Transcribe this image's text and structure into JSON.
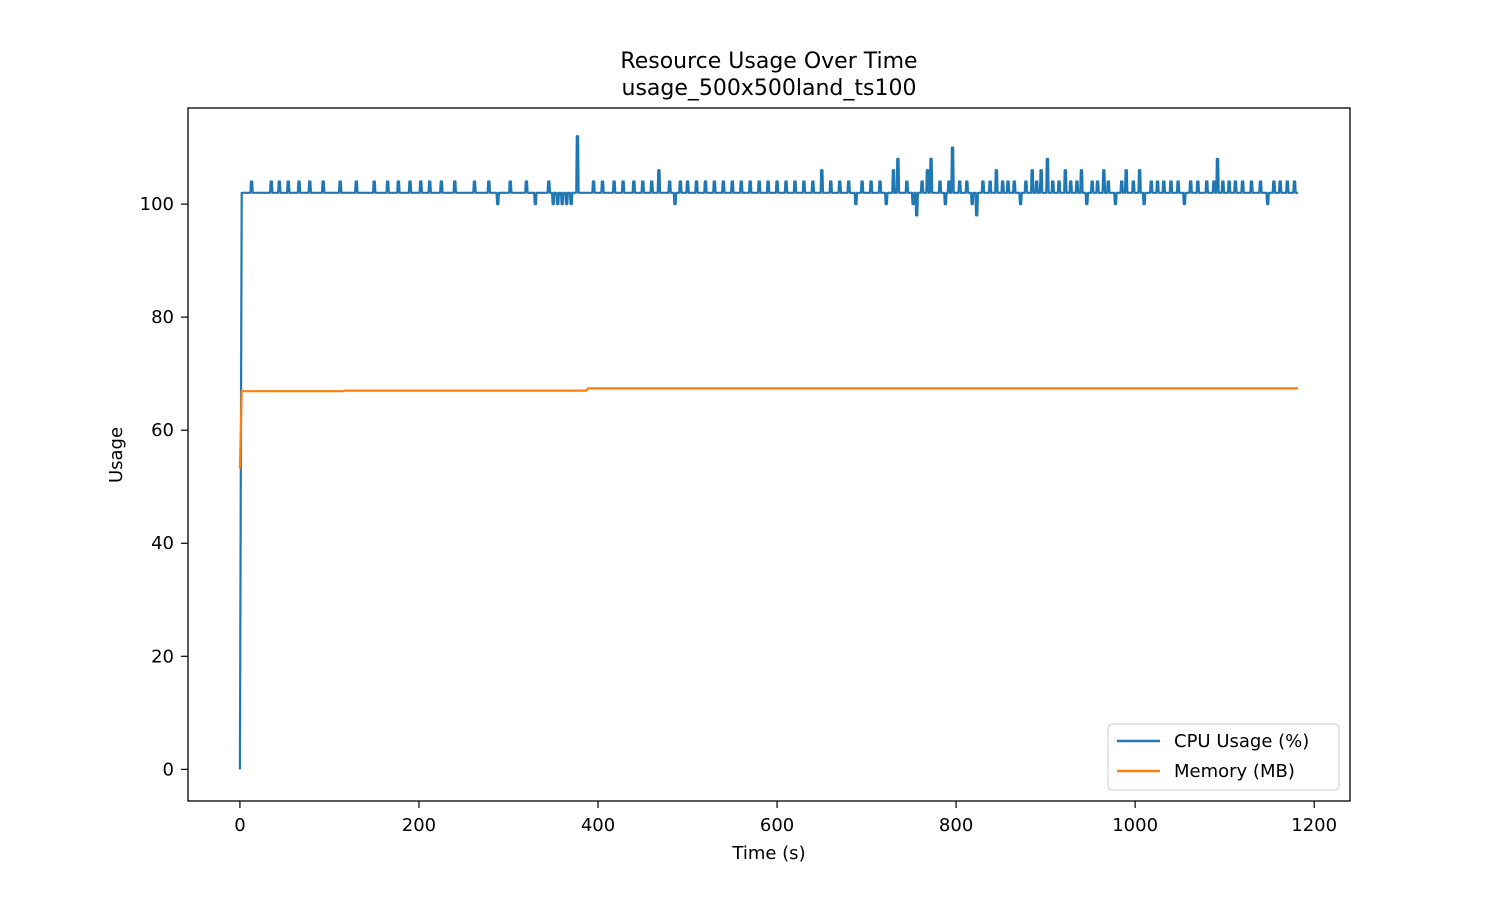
{
  "chart_data": {
    "type": "line",
    "title": "Resource Usage Over Time",
    "subtitle": "usage_500x500land_ts100",
    "xlabel": "Time (s)",
    "ylabel": "Usage",
    "xlim": [
      -58,
      1240
    ],
    "ylim": [
      -5.6,
      117
    ],
    "xticks": [
      0,
      200,
      400,
      600,
      800,
      1000,
      1200
    ],
    "yticks": [
      0,
      20,
      40,
      60,
      80,
      100
    ],
    "grid": false,
    "legend_position": "lower-right",
    "series": [
      {
        "name": "CPU Usage (%)",
        "color": "#1f77b4",
        "baseline": 102,
        "points": [
          [
            0,
            0
          ],
          [
            1,
            53
          ],
          [
            2,
            102
          ]
        ],
        "excursions": [
          [
            13,
            104
          ],
          [
            35,
            104
          ],
          [
            44,
            104
          ],
          [
            54,
            104
          ],
          [
            66,
            104
          ],
          [
            78,
            104
          ],
          [
            93,
            104
          ],
          [
            112,
            104
          ],
          [
            130,
            104
          ],
          [
            150,
            104
          ],
          [
            165,
            104
          ],
          [
            177,
            104
          ],
          [
            190,
            104
          ],
          [
            202,
            104
          ],
          [
            212,
            104
          ],
          [
            225,
            104
          ],
          [
            240,
            104
          ],
          [
            262,
            104
          ],
          [
            278,
            104
          ],
          [
            288,
            100
          ],
          [
            302,
            104
          ],
          [
            320,
            104
          ],
          [
            330,
            100
          ],
          [
            345,
            104
          ],
          [
            350,
            100
          ],
          [
            355,
            100
          ],
          [
            360,
            100
          ],
          [
            365,
            100
          ],
          [
            370,
            100
          ],
          [
            377,
            112
          ],
          [
            395,
            104
          ],
          [
            405,
            104
          ],
          [
            418,
            104
          ],
          [
            428,
            104
          ],
          [
            440,
            104
          ],
          [
            450,
            104
          ],
          [
            460,
            104
          ],
          [
            468,
            106
          ],
          [
            480,
            104
          ],
          [
            486,
            100
          ],
          [
            492,
            104
          ],
          [
            500,
            104
          ],
          [
            510,
            104
          ],
          [
            520,
            104
          ],
          [
            530,
            104
          ],
          [
            540,
            104
          ],
          [
            550,
            104
          ],
          [
            560,
            104
          ],
          [
            570,
            104
          ],
          [
            580,
            104
          ],
          [
            590,
            104
          ],
          [
            600,
            104
          ],
          [
            610,
            104
          ],
          [
            620,
            104
          ],
          [
            630,
            104
          ],
          [
            640,
            104
          ],
          [
            650,
            106
          ],
          [
            660,
            104
          ],
          [
            670,
            104
          ],
          [
            680,
            104
          ],
          [
            688,
            100
          ],
          [
            695,
            104
          ],
          [
            705,
            104
          ],
          [
            715,
            104
          ],
          [
            722,
            100
          ],
          [
            730,
            106
          ],
          [
            735,
            108
          ],
          [
            745,
            104
          ],
          [
            752,
            100
          ],
          [
            756,
            98
          ],
          [
            762,
            104
          ],
          [
            768,
            106
          ],
          [
            772,
            108
          ],
          [
            782,
            104
          ],
          [
            788,
            100
          ],
          [
            792,
            104
          ],
          [
            796,
            110
          ],
          [
            804,
            104
          ],
          [
            812,
            104
          ],
          [
            818,
            100
          ],
          [
            823,
            98
          ],
          [
            830,
            104
          ],
          [
            838,
            104
          ],
          [
            845,
            106
          ],
          [
            852,
            104
          ],
          [
            858,
            104
          ],
          [
            865,
            104
          ],
          [
            872,
            100
          ],
          [
            878,
            104
          ],
          [
            885,
            106
          ],
          [
            890,
            104
          ],
          [
            895,
            106
          ],
          [
            902,
            108
          ],
          [
            908,
            104
          ],
          [
            915,
            104
          ],
          [
            922,
            106
          ],
          [
            928,
            104
          ],
          [
            935,
            104
          ],
          [
            940,
            106
          ],
          [
            946,
            100
          ],
          [
            952,
            104
          ],
          [
            958,
            104
          ],
          [
            965,
            106
          ],
          [
            970,
            104
          ],
          [
            978,
            100
          ],
          [
            985,
            104
          ],
          [
            990,
            106
          ],
          [
            998,
            104
          ],
          [
            1005,
            106
          ],
          [
            1010,
            100
          ],
          [
            1018,
            104
          ],
          [
            1025,
            104
          ],
          [
            1032,
            104
          ],
          [
            1040,
            104
          ],
          [
            1048,
            104
          ],
          [
            1055,
            100
          ],
          [
            1062,
            104
          ],
          [
            1070,
            104
          ],
          [
            1080,
            104
          ],
          [
            1088,
            104
          ],
          [
            1092,
            108
          ],
          [
            1098,
            104
          ],
          [
            1105,
            104
          ],
          [
            1112,
            104
          ],
          [
            1120,
            104
          ],
          [
            1130,
            104
          ],
          [
            1140,
            104
          ],
          [
            1148,
            100
          ],
          [
            1155,
            104
          ],
          [
            1162,
            104
          ],
          [
            1170,
            104
          ],
          [
            1178,
            104
          ]
        ],
        "x_end": 1182
      },
      {
        "name": "Memory (MB)",
        "color": "#ff7f0e",
        "points": [
          [
            0,
            53.2
          ],
          [
            1,
            60.0
          ],
          [
            2,
            66.9
          ],
          [
            115,
            66.9
          ],
          [
            117,
            67.0
          ],
          [
            387,
            67.0
          ],
          [
            389,
            67.4
          ],
          [
            1182,
            67.4
          ]
        ]
      }
    ]
  }
}
